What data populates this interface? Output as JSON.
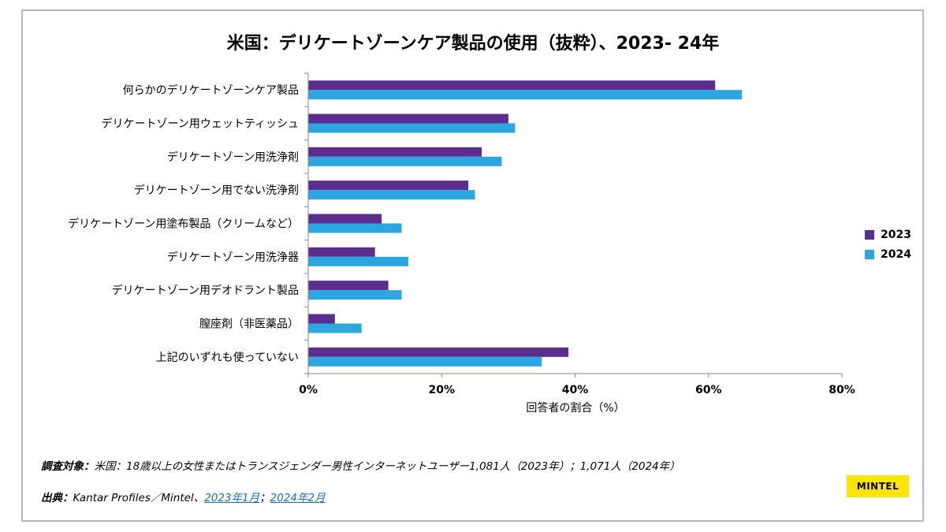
{
  "chart_data": {
    "type": "bar",
    "orientation": "horizontal",
    "title": "米国：デリケートゾーンケア製品の使用（抜粋）、2023- 24年",
    "xlabel": "回答者の割合（%）",
    "ylabel": "",
    "xlim": [
      0,
      80
    ],
    "ticks": [
      0,
      20,
      40,
      60,
      80
    ],
    "tick_labels": [
      "0%",
      "20%",
      "40%",
      "60%",
      "80%"
    ],
    "legend_position": "right",
    "categories": [
      "何らかのデリケートゾーンケア製品",
      "デリケートゾーン用ウェットティッシュ",
      "デリケートゾーン用洗浄剤",
      "デリケートゾーン用でない洗浄剤",
      "デリケートゾーン用塗布製品（クリームなど）",
      "デリケートゾーン用洗浄器",
      "デリケートゾーン用デオドラント製品",
      "膣座剤（非医薬品）",
      "上記のいずれも使っていない"
    ],
    "series": [
      {
        "name": "2023",
        "color": "#5b2d8e",
        "values": [
          61,
          30,
          26,
          24,
          11,
          10,
          12,
          4,
          39
        ]
      },
      {
        "name": "2024",
        "color": "#2ba6df",
        "values": [
          65,
          31,
          29,
          25,
          14,
          15,
          14,
          8,
          35
        ]
      }
    ]
  },
  "footer": {
    "survey_label": "調査対象：",
    "survey_text": "米国：18歳以上の女性またはトランスジェンダー男性インターネットユーザー1,081人（2023年）；1,071人（2024年）",
    "source_label": "出典：",
    "source_text": "Kantar Profiles／Mintel、",
    "source_link1": "2023年1月",
    "source_sep": "；",
    "source_link2": "2024年2月"
  },
  "logo": {
    "text": "MINTEL",
    "color": "#ffe500"
  }
}
